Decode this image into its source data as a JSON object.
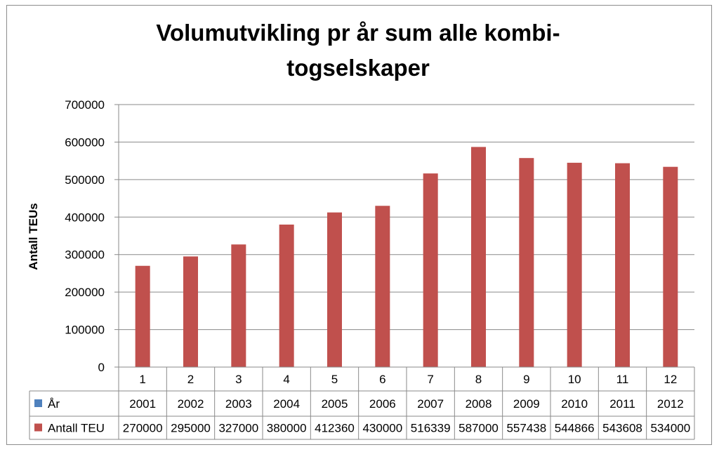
{
  "chart_data": {
    "type": "bar",
    "title": "Volumutvikling pr år sum alle kombi-\ntogselskaper",
    "ylabel": "Antall TEUs",
    "xlabel": "",
    "categories": [
      "1",
      "2",
      "3",
      "4",
      "5",
      "6",
      "7",
      "8",
      "9",
      "10",
      "11",
      "12"
    ],
    "ylim": [
      0,
      700000
    ],
    "yticks": [
      "0",
      "100000",
      "200000",
      "300000",
      "400000",
      "500000",
      "600000",
      "700000"
    ],
    "grid": true,
    "legend": "data-table",
    "series": [
      {
        "name": "År",
        "color": "#4f81bd",
        "values": [
          2001,
          2002,
          2003,
          2004,
          2005,
          2006,
          2007,
          2008,
          2009,
          2010,
          2011,
          2012
        ]
      },
      {
        "name": "Antall TEU",
        "color": "#c0504d",
        "values": [
          270000,
          295000,
          327000,
          380000,
          412360,
          430000,
          516339,
          587000,
          557438,
          544866,
          543608,
          534000
        ]
      }
    ]
  }
}
